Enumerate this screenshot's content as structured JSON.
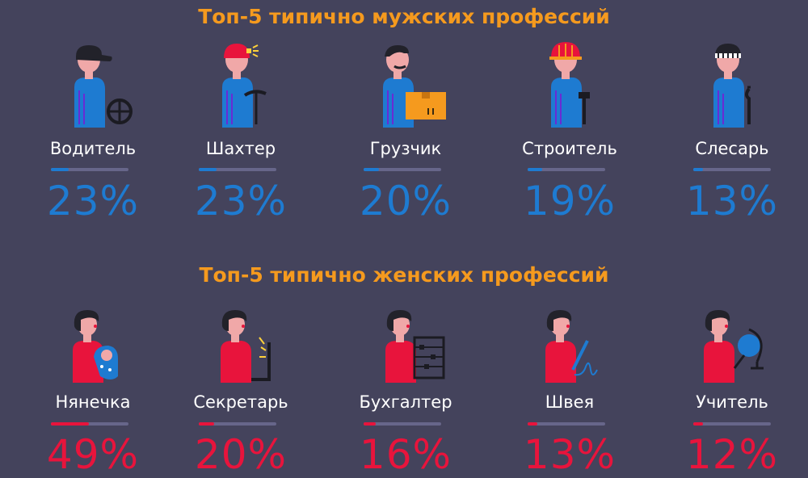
{
  "colors": {
    "background": "#44435c",
    "title": "#f59a1e",
    "men_accent": "#1e7bd1",
    "women_accent": "#e8143c",
    "track": "#67668a"
  },
  "men": {
    "title": "Топ-5 типично мужских профессий",
    "items": [
      {
        "label": "Водитель",
        "percent": "23%",
        "value": 23,
        "icon": "driver-icon"
      },
      {
        "label": "Шахтер",
        "percent": "23%",
        "value": 23,
        "icon": "miner-icon"
      },
      {
        "label": "Грузчик",
        "percent": "20%",
        "value": 20,
        "icon": "loader-icon"
      },
      {
        "label": "Строитель",
        "percent": "19%",
        "value": 19,
        "icon": "builder-icon"
      },
      {
        "label": "Слесарь",
        "percent": "13%",
        "value": 13,
        "icon": "locksmith-icon"
      }
    ]
  },
  "women": {
    "title": "Топ-5 типично женских профессий",
    "items": [
      {
        "label": "Нянечка",
        "percent": "49%",
        "value": 49,
        "icon": "nanny-icon"
      },
      {
        "label": "Секретарь",
        "percent": "20%",
        "value": 20,
        "icon": "secretary-icon"
      },
      {
        "label": "Бухгалтер",
        "percent": "16%",
        "value": 16,
        "icon": "accountant-icon"
      },
      {
        "label": "Швея",
        "percent": "13%",
        "value": 13,
        "icon": "seamstress-icon"
      },
      {
        "label": "Учитель",
        "percent": "12%",
        "value": 12,
        "icon": "teacher-icon"
      }
    ]
  }
}
